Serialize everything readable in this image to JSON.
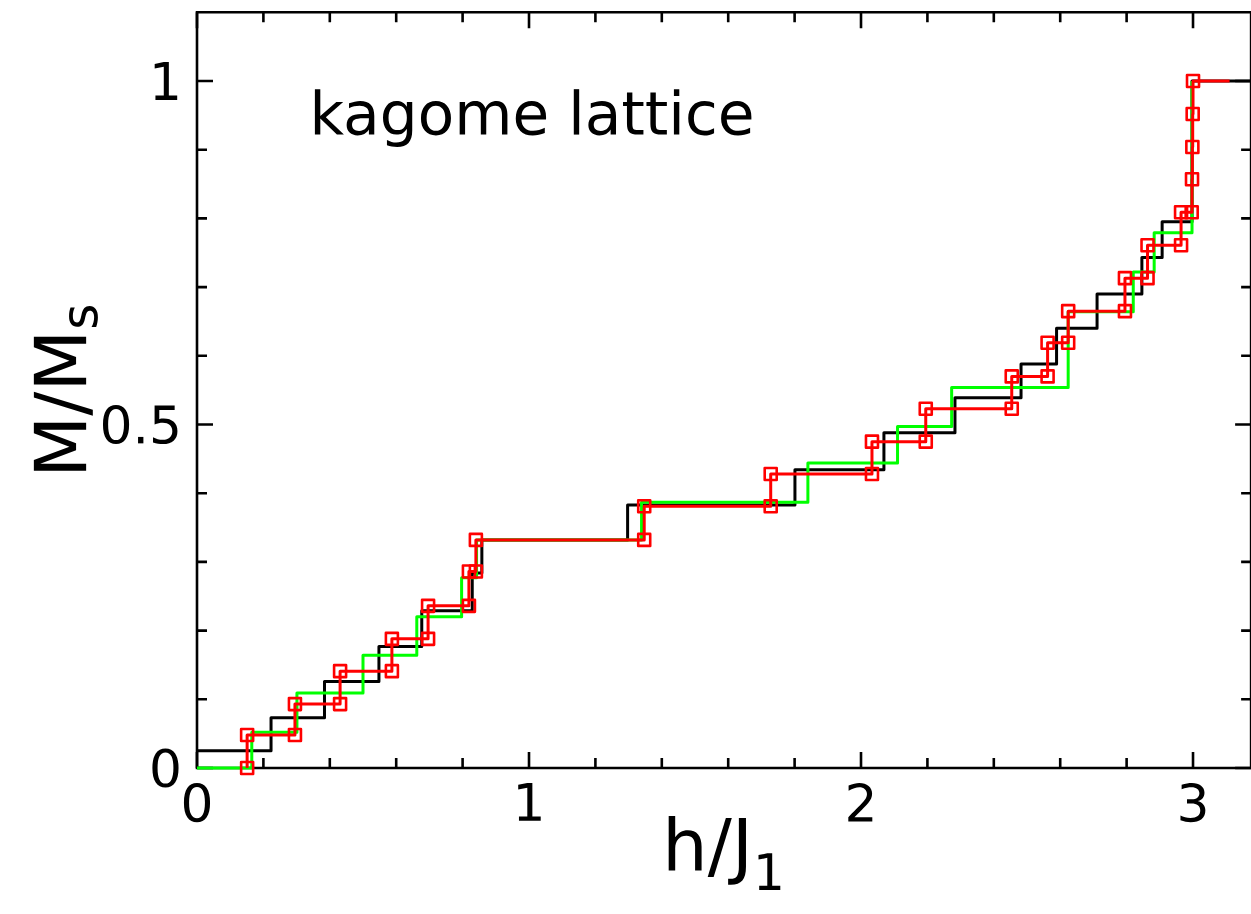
{
  "chart_data": {
    "type": "step",
    "xlabel": "h/J$_{1}$",
    "ylabel": "M/M$_{s}$",
    "annotations": [
      "kagome lattice"
    ],
    "xlim": [
      0,
      3.175
    ],
    "ylim": [
      0,
      1.1
    ],
    "xticks": [
      0,
      {
        "value": 0.2,
        "label": null
      },
      {
        "value": 0.4,
        "label": null
      },
      {
        "value": 0.6,
        "label": null
      },
      {
        "value": 0.8,
        "label": null
      },
      1,
      {
        "value": 1.2,
        "label": null
      },
      {
        "value": 1.4,
        "label": null
      },
      {
        "value": 1.6,
        "label": null
      },
      {
        "value": 1.8,
        "label": null
      },
      2,
      {
        "value": 2.2,
        "label": null
      },
      {
        "value": 2.4,
        "label": null
      },
      {
        "value": 2.6,
        "label": null
      },
      {
        "value": 2.8,
        "label": null
      },
      3
    ],
    "yticks": [
      0,
      {
        "value": 0.1,
        "label": null
      },
      {
        "value": 0.2,
        "label": null
      },
      {
        "value": 0.3,
        "label": null
      },
      {
        "value": 0.4,
        "label": null
      },
      0.5,
      {
        "value": 0.6,
        "label": null
      },
      {
        "value": 0.7,
        "label": null
      },
      {
        "value": 0.8,
        "label": null
      },
      {
        "value": 0.9,
        "label": null
      },
      1
    ],
    "series": [
      {
        "color": "#000000",
        "marker": "none",
        "x": [
          0,
          0.223,
          0.384,
          0.548,
          0.677,
          0.829,
          0.858,
          1.297,
          1.801,
          2.069,
          2.283,
          2.482,
          2.589,
          2.711,
          2.846,
          2.907,
          2.997,
          3.175
        ],
        "values": [
          0.025,
          0.073,
          0.126,
          0.177,
          0.229,
          0.284,
          0.332,
          0.383,
          0.434,
          0.488,
          0.539,
          0.588,
          0.64,
          0.69,
          0.743,
          0.795,
          1.0,
          1.0
        ]
      },
      {
        "color": "#00ff00",
        "marker": "none",
        "x": [
          0,
          0.165,
          0.301,
          0.5,
          0.662,
          0.797,
          0.842,
          1.339,
          1.84,
          2.11,
          2.273,
          2.624,
          2.82,
          2.883,
          2.997
        ],
        "values": [
          0,
          0.052,
          0.109,
          0.164,
          0.22,
          0.277,
          0.332,
          0.387,
          0.444,
          0.497,
          0.554,
          0.664,
          0.722,
          0.779,
          1.0
        ]
      },
      {
        "color": "#ff0000",
        "marker": "square",
        "x": [
          0.151,
          0.151,
          0.295,
          0.295,
          0.431,
          0.431,
          0.587,
          0.587,
          0.696,
          0.696,
          0.819,
          0.819,
          0.84,
          0.84,
          1.347,
          1.347,
          1.728,
          1.728,
          2.033,
          2.033,
          2.195,
          2.195,
          2.454,
          2.454,
          2.562,
          2.562,
          2.624,
          2.624,
          2.795,
          2.795,
          2.863,
          2.863,
          2.964,
          2.964,
          2.996,
          2.997,
          2.998,
          2.999,
          3.0,
          3.11
        ],
        "values": [
          0,
          0.048,
          0.048,
          0.093,
          0.093,
          0.141,
          0.141,
          0.188,
          0.188,
          0.236,
          0.236,
          0.286,
          0.286,
          0.332,
          0.332,
          0.381,
          0.381,
          0.428,
          0.428,
          0.475,
          0.475,
          0.523,
          0.523,
          0.57,
          0.57,
          0.619,
          0.619,
          0.665,
          0.665,
          0.713,
          0.713,
          0.761,
          0.761,
          0.809,
          0.809,
          0.857,
          0.904,
          0.952,
          1.0,
          1.0
        ]
      }
    ]
  }
}
